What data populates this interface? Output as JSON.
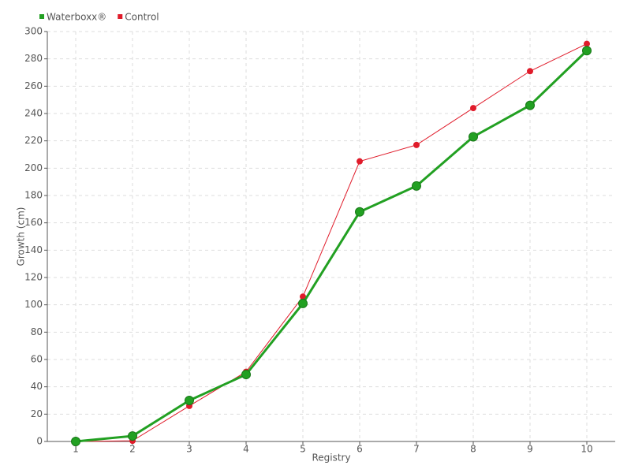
{
  "chart_data": {
    "type": "line",
    "x_label": "Registry",
    "y_label": "Growth (cm)",
    "categories": [
      "1",
      "2",
      "3",
      "4",
      "5",
      "6",
      "7",
      "8",
      "9",
      "10"
    ],
    "series": [
      {
        "name": "Waterboxx®",
        "color": "#22a022",
        "values": [
          0,
          4,
          30,
          49,
          101,
          168,
          187,
          223,
          246,
          286
        ]
      },
      {
        "name": "Control",
        "color": "#e01b2a",
        "values": [
          0,
          0.5,
          26,
          51,
          106,
          205,
          217,
          244,
          271,
          291
        ]
      }
    ],
    "ylim": [
      0,
      300
    ],
    "yticks": [
      0,
      20,
      40,
      60,
      80,
      100,
      120,
      140,
      160,
      180,
      200,
      220,
      240,
      260,
      280,
      300
    ],
    "grid": true,
    "legend": "top-left"
  }
}
